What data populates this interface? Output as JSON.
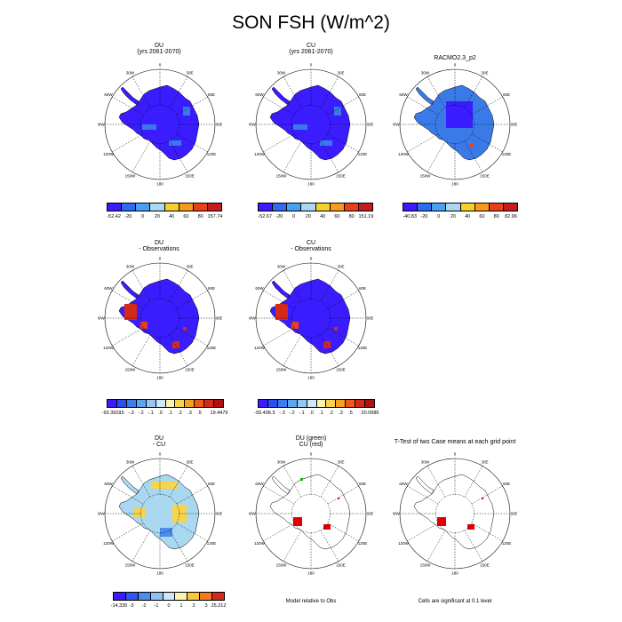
{
  "title": "SON FSH (W/m^2)",
  "panels": [
    {
      "id": "p1",
      "title1": "DU",
      "title2": "(yrs 2061-2070)"
    },
    {
      "id": "p2",
      "title1": "CU",
      "title2": "(yrs 2061-2070)"
    },
    {
      "id": "p3",
      "title1": "RACMO2.3_p2",
      "title2": ""
    },
    {
      "id": "p4",
      "title1": "DU",
      "title2": "- Observations"
    },
    {
      "id": "p5",
      "title1": "CU",
      "title2": "- Observations"
    },
    {
      "id": "p6",
      "title1": "DU",
      "title2": "- CU"
    },
    {
      "id": "p7",
      "title1": "DU (green)",
      "title2": "CU (red)"
    },
    {
      "id": "p8",
      "title1": "T-Test of two Case means at each grid point",
      "title2": ""
    }
  ],
  "lon_labels": [
    "0",
    "30E",
    "60E",
    "90E",
    "120E",
    "150E",
    "180",
    "150W",
    "120W",
    "90W",
    "60W",
    "30W"
  ],
  "colorbars": [
    {
      "id": "cb1",
      "labels": [
        "-52.42",
        "-20",
        "0",
        "20",
        "40",
        "60",
        "80",
        "157.74"
      ],
      "colors": [
        "#3a1cff",
        "#2e6bf0",
        "#4aa0f0",
        "#a9d8f0",
        "#f5cf2b",
        "#f59a1a",
        "#e8401c",
        "#c41c1c"
      ]
    },
    {
      "id": "cb2",
      "labels": [
        "-52.67",
        "-20",
        "0",
        "20",
        "40",
        "60",
        "80",
        "151.19"
      ],
      "colors": [
        "#3a1cff",
        "#2e6bf0",
        "#4aa0f0",
        "#a9d8f0",
        "#f5cf2b",
        "#f59a1a",
        "#e8401c",
        "#c41c1c"
      ]
    },
    {
      "id": "cb3",
      "labels": [
        "-40.83",
        "-20",
        "0",
        "20",
        "40",
        "60",
        "80",
        "82.96"
      ],
      "colors": [
        "#3a1cff",
        "#2e6bf0",
        "#4aa0f0",
        "#a9d8f0",
        "#f5cf2b",
        "#f59a1a",
        "#e8401c",
        "#c41c1c"
      ]
    },
    {
      "id": "cb4",
      "labels": [
        "-93.3923",
        "-.5",
        "-.3",
        "-.2",
        "-.1",
        ".0",
        ".1",
        ".2",
        ".3",
        ".5",
        "19.4479"
      ],
      "colors": [
        "#3a1cff",
        "#2e4ff0",
        "#3a7ef0",
        "#5aa6f0",
        "#94c8f0",
        "#cfe8f5",
        "#fbf3b0",
        "#f7d44a",
        "#f5a21e",
        "#ee5a1c",
        "#d42a1a",
        "#b01010"
      ]
    },
    {
      "id": "cb5",
      "labels": [
        "-93.495",
        "-.5",
        "-.3",
        "-.2",
        "-.1",
        ".0",
        ".1",
        ".2",
        ".3",
        ".5",
        "20.0986"
      ],
      "colors": [
        "#3a1cff",
        "#2e4ff0",
        "#3a7ef0",
        "#5aa6f0",
        "#94c8f0",
        "#cfe8f5",
        "#fbf3b0",
        "#f7d44a",
        "#f5a21e",
        "#ee5a1c",
        "#d42a1a",
        "#b01010"
      ]
    },
    {
      "id": "cb6",
      "labels": [
        "-14.335",
        "-3",
        "-2",
        "-1",
        "0",
        "1",
        "2",
        "3",
        "25.212"
      ],
      "colors": [
        "#3a1cff",
        "#2e56f0",
        "#4a8ef0",
        "#8ec2f0",
        "#cfe8f5",
        "#fbf3b0",
        "#f7c83a",
        "#f57a1e",
        "#d42a1a"
      ]
    }
  ],
  "notes": {
    "model_relative": "Model relative to Obs",
    "significance": "Cells are significant at 0.1 level"
  }
}
